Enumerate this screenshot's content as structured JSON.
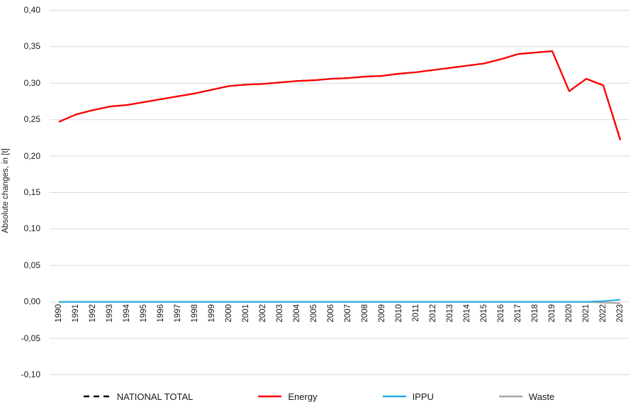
{
  "chart_data": {
    "type": "line",
    "title": "",
    "xlabel": "",
    "ylabel": "Absolute changes, in [t]",
    "x": [
      1990,
      1991,
      1992,
      1993,
      1994,
      1995,
      1996,
      1997,
      1998,
      1999,
      2000,
      2001,
      2002,
      2003,
      2004,
      2005,
      2006,
      2007,
      2008,
      2009,
      2010,
      2011,
      2012,
      2013,
      2014,
      2015,
      2016,
      2017,
      2018,
      2019,
      2020,
      2021,
      2022,
      2023
    ],
    "x_tick_labels": [
      "1990",
      "1991",
      "1992",
      "1993",
      "1994",
      "1995",
      "1996",
      "1997",
      "1998",
      "1999",
      "2000",
      "2001",
      "2002",
      "2003",
      "2004",
      "2005",
      "2006",
      "2007",
      "2008",
      "2009",
      "2010",
      "2011",
      "2012",
      "2013",
      "2014",
      "2015",
      "2016",
      "2017",
      "2018",
      "2019",
      "2020",
      "2021",
      "2022",
      "2023"
    ],
    "y_ticks": {
      "values": [
        0.4,
        0.35,
        0.3,
        0.25,
        0.2,
        0.15,
        0.1,
        0.05,
        0.0,
        -0.05,
        -0.1
      ],
      "labels": [
        "0,40",
        "0,35",
        "0,30",
        "0,25",
        "0,20",
        "0,15",
        "0,10",
        "0,05",
        "0,00",
        "-0,05",
        "-0,10"
      ]
    },
    "ylim": [
      -0.1,
      0.4
    ],
    "grid": "horizontal",
    "gridline_color": "#DADADA",
    "background_color": "#FFFFFF",
    "legend_position": "bottom",
    "series": [
      {
        "name": "NATIONAL TOTAL",
        "color": "#000000",
        "style": "dashed",
        "values": [
          0.247,
          0.257,
          0.263,
          0.268,
          0.27,
          0.274,
          0.278,
          0.282,
          0.286,
          0.291,
          0.296,
          0.298,
          0.299,
          0.301,
          0.303,
          0.304,
          0.306,
          0.307,
          0.309,
          0.31,
          0.313,
          0.315,
          0.318,
          0.321,
          0.324,
          0.327,
          0.333,
          0.34,
          0.342,
          0.344,
          0.289,
          0.306,
          0.297,
          0.223
        ]
      },
      {
        "name": "Energy",
        "color": "#FF0000",
        "style": "solid",
        "values": [
          0.247,
          0.257,
          0.263,
          0.268,
          0.27,
          0.274,
          0.278,
          0.282,
          0.286,
          0.291,
          0.296,
          0.298,
          0.299,
          0.301,
          0.303,
          0.304,
          0.306,
          0.307,
          0.309,
          0.31,
          0.313,
          0.315,
          0.318,
          0.321,
          0.324,
          0.327,
          0.333,
          0.34,
          0.342,
          0.344,
          0.289,
          0.306,
          0.297,
          0.222
        ]
      },
      {
        "name": "IPPU",
        "color": "#29ABE2",
        "style": "solid",
        "values": [
          0.0,
          0.0,
          0.0,
          0.0,
          0.0,
          0.0,
          0.0,
          0.0,
          0.0,
          0.0,
          0.0,
          0.0,
          0.0,
          0.0,
          0.0,
          0.0,
          0.0,
          0.0,
          0.0,
          0.0,
          0.0,
          0.0,
          0.0,
          0.0,
          0.0,
          0.0,
          0.0,
          0.0,
          0.0,
          0.0,
          0.0,
          0.0,
          0.001,
          0.003
        ]
      },
      {
        "name": "Waste",
        "color": "#A6A6A6",
        "style": "solid",
        "values": [
          0.0,
          0.0,
          0.0,
          0.0,
          0.0,
          0.0,
          0.0,
          0.0,
          0.0,
          0.0,
          0.0,
          0.0,
          0.0,
          0.0,
          0.0,
          0.0,
          0.0,
          0.0,
          0.0,
          0.0,
          0.0,
          0.0,
          0.0,
          0.0,
          0.0,
          0.0,
          0.0,
          0.0,
          0.0,
          0.0,
          0.0,
          0.0,
          -0.001,
          -0.002
        ]
      }
    ]
  }
}
